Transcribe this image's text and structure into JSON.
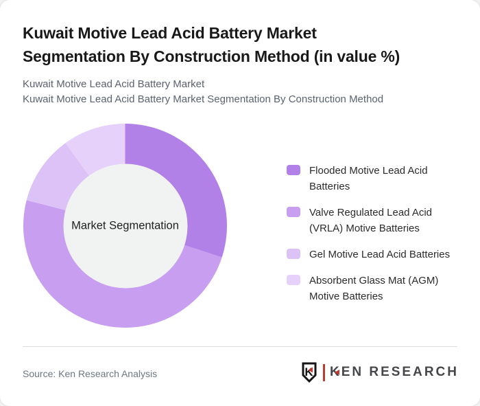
{
  "header": {
    "title_line1": "Kuwait Motive Lead Acid Battery Market",
    "title_line2": "Segmentation By Construction Method (in value %)",
    "subtitle_line1": "Kuwait Motive Lead Acid Battery Market",
    "subtitle_line2": "Kuwait Motive Lead Acid Battery Market Segmentation By Construction Method"
  },
  "chart_data": {
    "type": "pie",
    "variant": "donut",
    "title": "Kuwait Motive Lead Acid Battery Market Segmentation By Construction Method (in value %)",
    "center_label": "Market Segmentation",
    "unit": "value %",
    "categories": [
      "Flooded Motive Lead Acid Batteries",
      "Valve Regulated Lead Acid (VRLA) Motive Batteries",
      "Gel Motive Lead Acid Batteries",
      "Absorbent Glass Mat (AGM) Motive Batteries"
    ],
    "values": [
      30,
      49,
      11,
      10
    ],
    "colors": [
      "#b181e8",
      "#c89ff0",
      "#dcc2f6",
      "#e5d1f9"
    ],
    "start_angle_deg": 0,
    "direction": "clockwise",
    "inner_circle_color": "#f1f2f2",
    "legend_position": "right"
  },
  "legend": {
    "items": [
      {
        "label": "Flooded Motive Lead Acid Batteries",
        "color": "#b181e8"
      },
      {
        "label": "Valve Regulated Lead Acid (VRLA) Motive Batteries",
        "color": "#c89ff0"
      },
      {
        "label": "Gel Motive Lead Acid Batteries",
        "color": "#dcc2f6"
      },
      {
        "label": "Absorbent Glass Mat (AGM) Motive Batteries",
        "color": "#e5d1f9"
      }
    ]
  },
  "footer": {
    "source": "Source: Ken Research Analysis",
    "logo": {
      "badge_letter": "K",
      "text": "KEN RESEARCH",
      "accent_color": "#c13a30",
      "icon": "shield-k-icon"
    }
  }
}
